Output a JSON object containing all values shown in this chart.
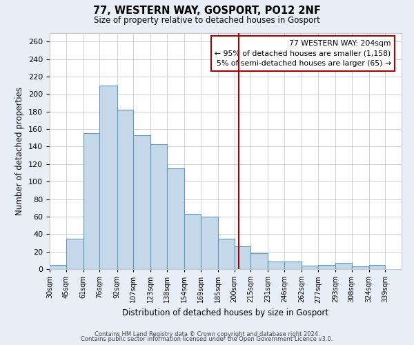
{
  "title": "77, WESTERN WAY, GOSPORT, PO12 2NF",
  "subtitle": "Size of property relative to detached houses in Gosport",
  "xlabel": "Distribution of detached houses by size in Gosport",
  "ylabel": "Number of detached properties",
  "bin_labels": [
    "30sqm",
    "45sqm",
    "61sqm",
    "76sqm",
    "92sqm",
    "107sqm",
    "123sqm",
    "138sqm",
    "154sqm",
    "169sqm",
    "185sqm",
    "200sqm",
    "215sqm",
    "231sqm",
    "246sqm",
    "262sqm",
    "277sqm",
    "293sqm",
    "308sqm",
    "324sqm",
    "339sqm"
  ],
  "bin_edges": [
    30,
    45,
    61,
    76,
    92,
    107,
    123,
    138,
    154,
    169,
    185,
    200,
    215,
    231,
    246,
    262,
    277,
    293,
    308,
    324,
    339,
    354
  ],
  "bar_heights": [
    5,
    35,
    155,
    210,
    182,
    153,
    143,
    115,
    63,
    60,
    35,
    26,
    18,
    9,
    9,
    4,
    5,
    7,
    3,
    5,
    0
  ],
  "bar_color": "#c5d8ea",
  "bar_edge_color": "#5b9aba",
  "property_line_x": 204,
  "property_line_color": "#aa0000",
  "annotation_text": "77 WESTERN WAY: 204sqm\n← 95% of detached houses are smaller (1,158)\n5% of semi-detached houses are larger (65) →",
  "annotation_box_color": "#ffffff",
  "annotation_box_edge": "#aa0000",
  "ylim": [
    0,
    270
  ],
  "yticks": [
    0,
    20,
    40,
    60,
    80,
    100,
    120,
    140,
    160,
    180,
    200,
    220,
    240,
    260
  ],
  "footer1": "Contains HM Land Registry data © Crown copyright and database right 2024.",
  "footer2": "Contains public sector information licensed under the Open Government Licence v3.0.",
  "background_color": "#e8eef5",
  "plot_background_color": "#ffffff",
  "grid_color": "#c8c8d0"
}
